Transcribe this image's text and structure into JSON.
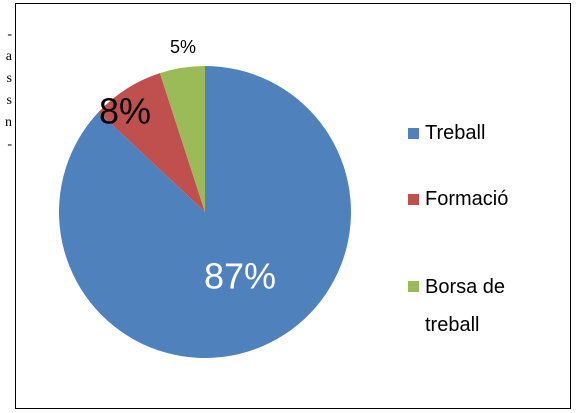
{
  "margin_text": [
    "-",
    "a",
    "s",
    "s",
    "n",
    "-"
  ],
  "chart_data": {
    "type": "pie",
    "categories": [
      "Treball",
      "Formació",
      "Borsa de treball"
    ],
    "values": [
      87,
      8,
      5
    ],
    "value_labels": [
      "87%",
      "8%",
      "5%"
    ],
    "colors": [
      "#4f81bd",
      "#c0504d",
      "#9bbb59"
    ],
    "legend": "right"
  }
}
